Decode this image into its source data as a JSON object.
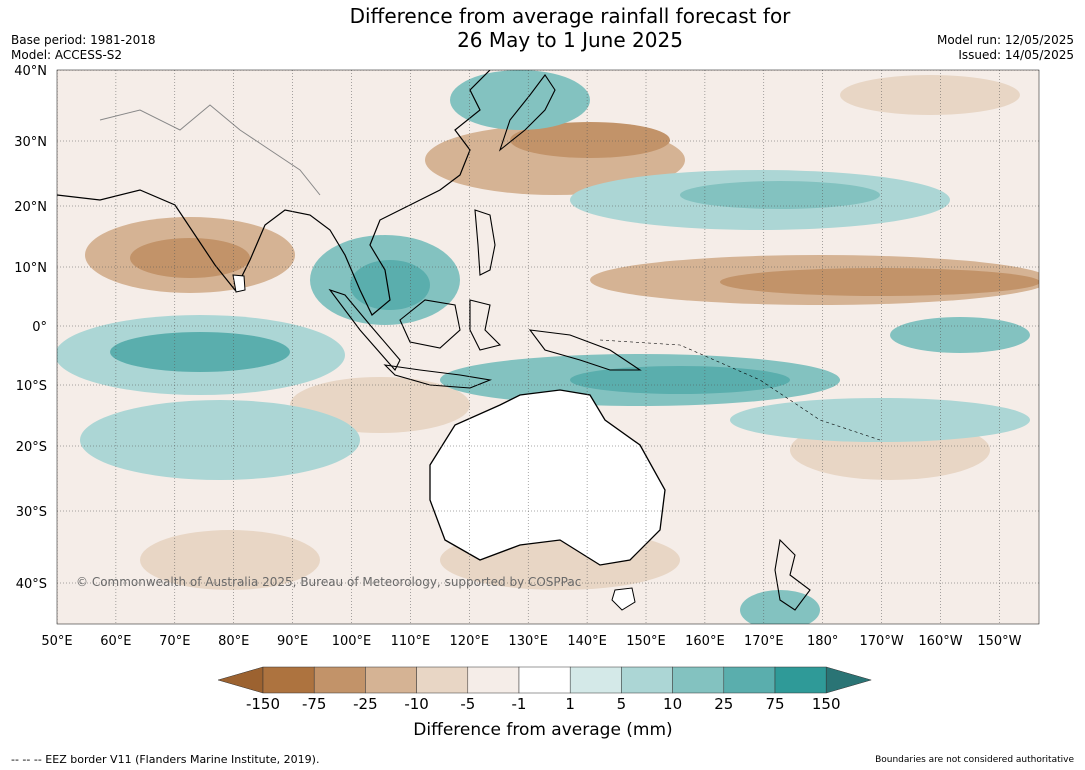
{
  "title_line1": "Difference from average rainfall forecast for",
  "title_line2": "26 May to 1 June 2025",
  "base_period": "Base period: 1981-2018",
  "model": "Model: ACCESS-S2",
  "model_run": "Model run: 12/05/2025",
  "issued": "Issued: 14/05/2025",
  "copyright": "© Commonwealth of Australia 2025, Bureau of Meteorology, supported by COSPPac",
  "lat_labels": [
    "40°N",
    "30°N",
    "20°N",
    "10°N",
    "0°",
    "10°S",
    "20°S",
    "30°S",
    "40°S"
  ],
  "lon_labels": [
    "50°E",
    "60°E",
    "70°E",
    "80°E",
    "90°E",
    "100°E",
    "110°E",
    "120°E",
    "130°E",
    "140°E",
    "150°E",
    "160°E",
    "170°E",
    "180°",
    "170°W",
    "160°W",
    "150°W"
  ],
  "legend": {
    "title": "Difference from average (mm)",
    "ticks": [
      "-150",
      "-75",
      "-25",
      "-10",
      "-5",
      "-1",
      "1",
      "5",
      "10",
      "25",
      "75",
      "150"
    ],
    "colors": [
      "#9c6230",
      "#ad733f",
      "#c29369",
      "#d5b394",
      "#e8d6c5",
      "#f5ede8",
      "#ffffff",
      "#d4e9e8",
      "#acd6d5",
      "#83c2c0",
      "#5aaead",
      "#2f9a98",
      "#2a7475"
    ]
  },
  "footer_left": "--  --  -- EEZ border V11 (Flanders Marine Institute, 2019).",
  "footer_right": "Boundaries are not considered authoritative"
}
